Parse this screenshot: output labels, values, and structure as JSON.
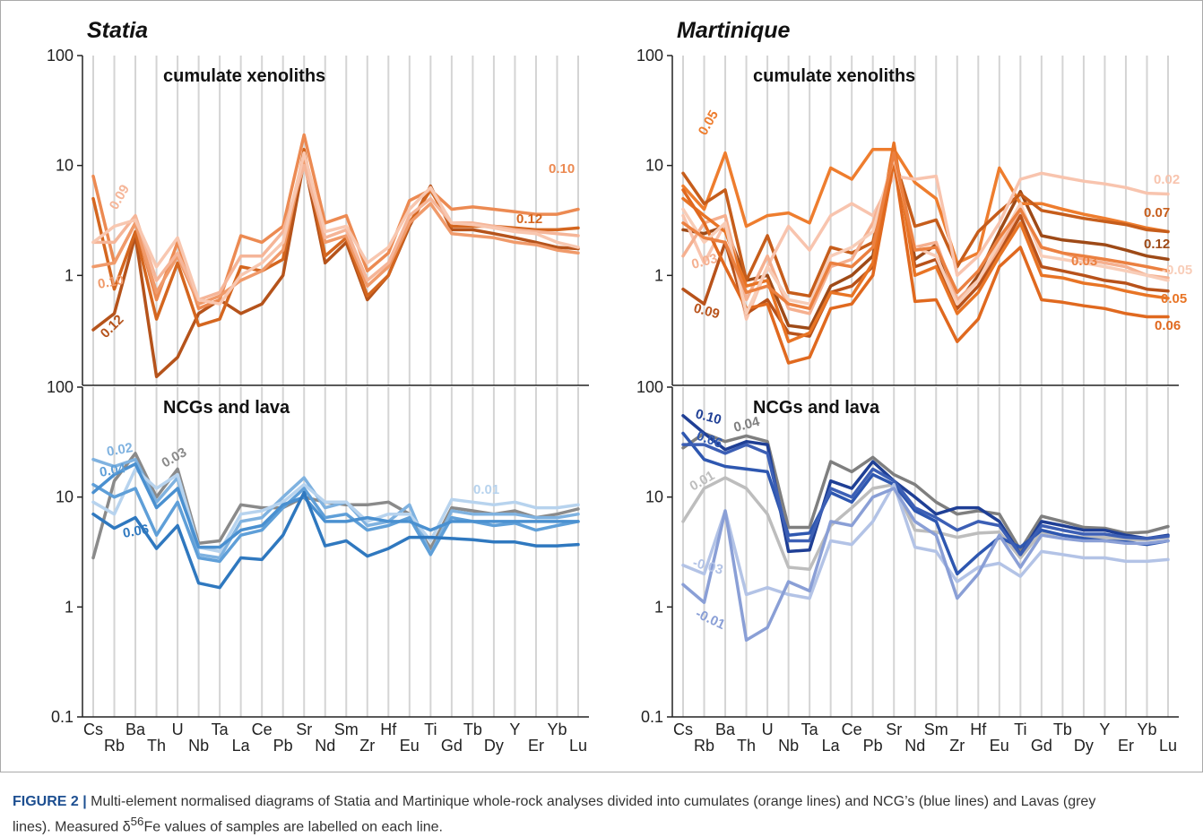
{
  "chart_data": [
    {
      "type": "line",
      "title": "Statia",
      "subtitle": "cumulate xenoliths",
      "log": true,
      "xgrid": true,
      "ylim": [
        0.1,
        100
      ],
      "yticks": [
        1,
        10,
        100
      ],
      "series": [
        {
          "name": "0.12",
          "color": "#b5531b",
          "values": [
            0.32,
            0.45,
            2.3,
            0.12,
            0.18,
            0.45,
            0.6,
            0.45,
            0.55,
            1.0,
            11,
            1.3,
            2.0,
            0.6,
            1.0,
            2.8,
            6.5,
            2.6,
            2.6,
            2.4,
            2.2,
            2.0,
            1.8,
            1.75
          ]
        },
        {
          "name": "0.12",
          "color": "#d4661f",
          "values": [
            5.0,
            0.75,
            2.5,
            0.4,
            1.3,
            0.35,
            0.4,
            1.2,
            1.1,
            1.4,
            14,
            1.5,
            2.2,
            0.65,
            1.0,
            3.0,
            6.0,
            2.8,
            2.8,
            2.8,
            2.7,
            2.6,
            2.6,
            2.7
          ]
        },
        {
          "name": "0.10",
          "color": "#ec8a52",
          "values": [
            8,
            1.3,
            3,
            0.6,
            2.0,
            0.5,
            0.6,
            2.3,
            2.0,
            2.8,
            19,
            3.0,
            3.5,
            1.1,
            1.6,
            4.8,
            6.0,
            4.0,
            4.2,
            4.0,
            3.8,
            3.6,
            3.6,
            4.0
          ]
        },
        {
          "name": "0.10",
          "color": "#f09a6a",
          "values": [
            1.2,
            1.3,
            3.0,
            0.7,
            1.5,
            0.55,
            0.65,
            0.9,
            1.1,
            1.7,
            12,
            2.0,
            2.3,
            0.8,
            1.2,
            3.0,
            4.5,
            2.4,
            2.3,
            2.2,
            2.0,
            1.9,
            1.7,
            1.6
          ]
        },
        {
          "name": "0.09",
          "color": "#f5b598",
          "values": [
            2.0,
            2.0,
            3.5,
            0.9,
            1.6,
            0.6,
            0.7,
            1.5,
            1.5,
            2.5,
            10,
            2.2,
            2.6,
            0.9,
            1.3,
            3.5,
            5.0,
            3.0,
            3.0,
            2.8,
            2.6,
            2.5,
            2.4,
            2.3
          ]
        },
        {
          "color": "#f8c7b0",
          "values": [
            2.0,
            2.8,
            3.2,
            1.2,
            2.2,
            0.6,
            0.55,
            1.0,
            1.3,
            2.0,
            13,
            2.5,
            2.8,
            1.3,
            1.8,
            4.0,
            6.3,
            3.0,
            2.9,
            2.7,
            2.5,
            2.4,
            2.0,
            1.8
          ]
        }
      ]
    },
    {
      "type": "line",
      "subtitle": "NCGs and lava",
      "log": true,
      "xgrid": true,
      "ylim": [
        0.1,
        100
      ],
      "yticks": [
        0.1,
        1,
        10,
        100
      ],
      "categories": [
        "Cs",
        "Rb",
        "Ba",
        "Th",
        "U",
        "Nb",
        "Ta",
        "La",
        "Ce",
        "Pb",
        "Sr",
        "Nd",
        "Sm",
        "Zr",
        "Hf",
        "Eu",
        "Ti",
        "Gd",
        "Tb",
        "Dy",
        "Y",
        "Er",
        "Yb",
        "Lu"
      ],
      "series": [
        {
          "name": "0.03",
          "color": "#8a8a8a",
          "values": [
            2.8,
            14,
            25,
            10,
            18,
            3.8,
            4.0,
            8.5,
            8,
            8,
            10,
            9,
            8.5,
            8.5,
            9,
            7,
            3.4,
            8,
            7.5,
            7,
            7.5,
            6.5,
            7,
            7.8
          ]
        },
        {
          "name": "0.02",
          "color": "#7fb2e0",
          "values": [
            22,
            19,
            22,
            9,
            15,
            3,
            2.8,
            6,
            6.5,
            10,
            15,
            8,
            9,
            5.5,
            6,
            8.5,
            3,
            7.5,
            7,
            7,
            7,
            6.5,
            6.5,
            7
          ]
        },
        {
          "name": "0.01",
          "color": "#b7d3ee",
          "values": [
            9,
            7,
            18,
            12,
            16,
            3.5,
            3.2,
            7,
            7.5,
            9,
            13,
            9,
            9,
            6,
            7,
            7,
            4,
            9.5,
            9,
            8.5,
            9,
            8,
            8,
            8.5
          ]
        },
        {
          "name": "0.04",
          "color": "#5f9fd8",
          "values": [
            13,
            10,
            12,
            4.5,
            9,
            2.8,
            2.6,
            4.5,
            5,
            8,
            12,
            6.5,
            7,
            5,
            5.5,
            6.5,
            3,
            6.5,
            6,
            5.5,
            5.8,
            5,
            5.5,
            6
          ]
        },
        {
          "color": "#4a90d0",
          "values": [
            11,
            16,
            20,
            8,
            12,
            3.5,
            3.5,
            5,
            5.5,
            8.5,
            10,
            6,
            6,
            6.5,
            6,
            6,
            5,
            6,
            6,
            6,
            6,
            6,
            6,
            6
          ]
        },
        {
          "name": "0.06",
          "color": "#2f78bf",
          "values": [
            7,
            5.2,
            6.5,
            3.4,
            5.5,
            1.65,
            1.5,
            2.8,
            2.7,
            4.5,
            11,
            3.6,
            4,
            2.9,
            3.4,
            4.3,
            4.3,
            4.2,
            4.1,
            3.9,
            3.9,
            3.6,
            3.6,
            3.7
          ]
        }
      ]
    },
    {
      "type": "line",
      "title": "Martinique",
      "subtitle": "cumulate xenoliths",
      "log": true,
      "xgrid": true,
      "ylim": [
        0.1,
        100
      ],
      "yticks": [
        1,
        10,
        100
      ],
      "series": [
        {
          "name": "0.12",
          "color": "#9e4a17",
          "values": [
            2.6,
            2.4,
            2.8,
            0.9,
            1.0,
            0.35,
            0.33,
            0.8,
            1.0,
            1.5,
            14,
            1.4,
            1.9,
            0.55,
            1.0,
            2.5,
            5.8,
            2.3,
            2.1,
            2.0,
            1.9,
            1.7,
            1.5,
            1.4
          ]
        },
        {
          "name": "0.05",
          "color": "#ee7d2e",
          "values": [
            6.5,
            4.0,
            13,
            2.8,
            3.5,
            3.7,
            3.0,
            9.5,
            7.5,
            14,
            14,
            7,
            5,
            1.3,
            1.6,
            9.5,
            4.5,
            4.5,
            4.0,
            3.6,
            3.3,
            3.0,
            2.7,
            2.5
          ]
        },
        {
          "name": "0.07",
          "color": "#c65d1b",
          "values": [
            8.5,
            4.5,
            6,
            0.9,
            2.3,
            0.7,
            0.65,
            1.8,
            1.6,
            2.0,
            12,
            2.8,
            3.2,
            1.2,
            2.5,
            3.8,
            5.5,
            3.9,
            3.6,
            3.3,
            3.1,
            2.9,
            2.6,
            2.5
          ]
        },
        {
          "name": "0.02",
          "color": "#f8c4ae",
          "values": [
            3.5,
            1.3,
            3,
            0.4,
            1.2,
            2.8,
            1.7,
            3.5,
            4.5,
            3.5,
            8,
            7.5,
            8,
            1.0,
            1.5,
            3.0,
            7.5,
            8.5,
            7.8,
            7.2,
            6.8,
            6.3,
            5.6,
            5.5
          ]
        },
        {
          "name": "0.03",
          "color": "#f5b090",
          "values": [
            1.5,
            3.0,
            3.5,
            0.6,
            1.5,
            0.5,
            0.45,
            1.2,
            1.4,
            3.0,
            10,
            1.8,
            2.0,
            0.6,
            0.9,
            1.8,
            4.0,
            1.8,
            1.6,
            1.4,
            1.3,
            1.2,
            1.0,
            0.95
          ]
        },
        {
          "name": "0.09",
          "color": "#b8521a",
          "values": [
            0.75,
            0.55,
            2.0,
            0.45,
            0.6,
            0.3,
            0.28,
            0.7,
            0.8,
            1.2,
            13,
            1.2,
            1.4,
            0.5,
            0.8,
            1.6,
            3.5,
            1.2,
            1.1,
            1.0,
            0.9,
            0.85,
            0.75,
            0.72
          ]
        },
        {
          "name": "0.05",
          "color": "#e87425",
          "values": [
            5.0,
            3.5,
            2.5,
            0.8,
            0.9,
            0.25,
            0.3,
            0.7,
            0.65,
            1.3,
            16,
            1.0,
            1.2,
            0.45,
            0.7,
            1.5,
            3.0,
            1.0,
            0.95,
            0.85,
            0.8,
            0.72,
            0.66,
            0.62
          ]
        },
        {
          "name": "0.06",
          "color": "#e0691f",
          "values": [
            6.0,
            3.0,
            1.2,
            0.5,
            0.55,
            0.16,
            0.18,
            0.5,
            0.55,
            1.0,
            11,
            0.58,
            0.6,
            0.25,
            0.4,
            1.2,
            1.8,
            0.6,
            0.57,
            0.53,
            0.5,
            0.45,
            0.42,
            0.42
          ]
        },
        {
          "name": "-0.05",
          "color": "#f8cdb8",
          "values": [
            4.0,
            2.0,
            3.0,
            0.45,
            1.2,
            0.6,
            0.55,
            1.5,
            1.8,
            2.5,
            12,
            1.8,
            1.5,
            0.55,
            0.9,
            2.0,
            4.5,
            1.5,
            1.4,
            1.3,
            1.2,
            1.1,
            1.0,
            0.9
          ]
        },
        {
          "name": "0.03",
          "color": "#eb8040",
          "values": [
            3.0,
            2.2,
            2.0,
            0.7,
            0.8,
            0.55,
            0.5,
            1.3,
            1.2,
            1.8,
            13,
            1.7,
            1.8,
            0.7,
            1.1,
            2.2,
            4.0,
            1.8,
            1.6,
            1.5,
            1.4,
            1.3,
            1.2,
            1.1
          ]
        }
      ]
    },
    {
      "type": "line",
      "subtitle": "NCGs and lava",
      "log": true,
      "xgrid": true,
      "ylim": [
        0.1,
        100
      ],
      "yticks": [
        0.1,
        1,
        10,
        100
      ],
      "categories": [
        "Cs",
        "Rb",
        "Ba",
        "Th",
        "U",
        "Nb",
        "Ta",
        "La",
        "Ce",
        "Pb",
        "Sr",
        "Nd",
        "Sm",
        "Zr",
        "Hf",
        "Eu",
        "Ti",
        "Gd",
        "Tb",
        "Dy",
        "Y",
        "Er",
        "Yb",
        "Lu"
      ],
      "series": [
        {
          "name": "0.04",
          "color": "#7f7f7f",
          "values": [
            28,
            38,
            32,
            36,
            32,
            5.3,
            5.3,
            21,
            17,
            23,
            16,
            13,
            9,
            7,
            7.5,
            7,
            3.3,
            6.7,
            6,
            5.3,
            5.2,
            4.7,
            4.8,
            5.4
          ]
        },
        {
          "name": "0.01",
          "color": "#bdbdbd",
          "values": [
            6,
            12,
            15,
            12,
            7,
            2.3,
            2.2,
            5.5,
            8,
            12,
            13,
            5,
            4.8,
            4.3,
            4.7,
            4.8,
            2.8,
            4.8,
            4.5,
            4.3,
            4.3,
            4.1,
            4.1,
            4.3
          ]
        },
        {
          "name": "0.10",
          "color": "#1f3f95",
          "values": [
            55,
            38,
            27,
            32,
            30,
            3.2,
            3.3,
            14,
            12,
            21,
            14,
            10,
            7,
            8,
            8,
            6,
            3,
            6,
            5.5,
            5,
            5,
            4.5,
            4.2,
            4.5
          ]
        },
        {
          "name": "0.06",
          "color": "#2e57b0",
          "values": [
            38,
            22,
            19,
            18,
            17,
            4.5,
            4.7,
            11,
            9,
            16,
            13,
            7.5,
            6,
            2.0,
            3,
            4.3,
            3.5,
            5,
            4.5,
            4.2,
            4,
            3.9,
            3.7,
            4.0
          ]
        },
        {
          "color": "#3c5fb5",
          "values": [
            30,
            30,
            25,
            30,
            25,
            4,
            4,
            12,
            10,
            18,
            14,
            8,
            6.5,
            5,
            6,
            5.5,
            3,
            5.5,
            5,
            4.6,
            4.6,
            4.3,
            4.2,
            4.4
          ]
        },
        {
          "name": "-0.03",
          "color": "#b3c3e6",
          "values": [
            2.4,
            2.0,
            7.5,
            1.3,
            1.5,
            1.3,
            1.2,
            4,
            3.7,
            6,
            13,
            3.5,
            3.2,
            1.7,
            2.3,
            2.5,
            1.9,
            3.2,
            3,
            2.8,
            2.8,
            2.6,
            2.6,
            2.7
          ]
        },
        {
          "name": "-0.01",
          "color": "#8a9fd6",
          "values": [
            1.6,
            1.1,
            7.5,
            0.5,
            0.65,
            1.7,
            1.4,
            6,
            5.5,
            10,
            12,
            6,
            4.5,
            1.2,
            2,
            4.5,
            2.3,
            4.5,
            4.2,
            4,
            4,
            3.8,
            3.8,
            4.0
          ]
        }
      ]
    }
  ],
  "caption": {
    "label": "FIGURE 2 |",
    "text": "Multi-element normalised diagrams of Statia and Martinique whole-rock analyses divided into cumulates (orange lines) and NCG’s (blue lines) and Lavas (grey lines). Measured δ",
    "superscript": "56",
    "text_end": "Fe values of samples are labelled on each line."
  }
}
